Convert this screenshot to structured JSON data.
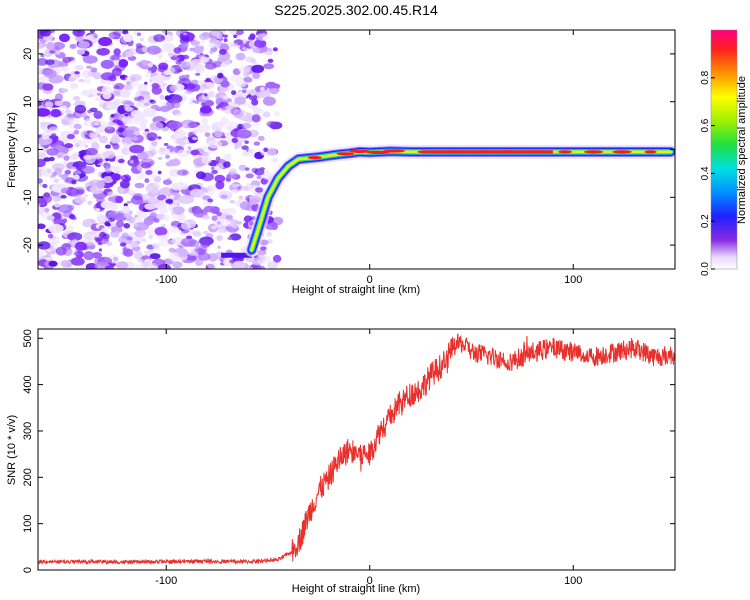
{
  "title": "S225.2025.302.00.45.R14",
  "chart_data": [
    {
      "type": "heatmap",
      "xlabel": "Height of straight line (km)",
      "ylabel": "Frequency (Hz)",
      "xlim": [
        -163,
        150
      ],
      "ylim": [
        -25,
        25
      ],
      "xticks": [
        -100,
        0,
        100
      ],
      "yticks": [
        -20,
        -10,
        0,
        10,
        20
      ],
      "xtick_labels": [
        "-100",
        "0",
        "100"
      ],
      "ytick_labels": [
        "-20",
        "-10",
        "0",
        "10",
        "20"
      ],
      "noise_region_x": [
        -163,
        -52
      ],
      "signal_track": {
        "x": [
          -58,
          -55,
          -50,
          -45,
          -40,
          -35,
          -30,
          -25,
          -20,
          -15,
          -10,
          -5,
          0,
          10,
          20,
          40,
          60,
          80,
          100,
          120,
          148
        ],
        "y": [
          -21,
          -17,
          -10,
          -6,
          -3.5,
          -2,
          -1.8,
          -1.6,
          -1.3,
          -1,
          -0.8,
          -0.5,
          -0.6,
          -0.4,
          -0.5,
          -0.5,
          -0.5,
          -0.5,
          -0.5,
          -0.5,
          -0.5
        ]
      },
      "colorbar": {
        "label": "Normalized spectral amplitude",
        "range": [
          0,
          1
        ],
        "ticks": [
          0.0,
          0.2,
          0.4,
          0.6,
          0.8
        ],
        "tick_labels": [
          "0.0",
          "0.2",
          "0.4",
          "0.6",
          "0.8"
        ]
      }
    },
    {
      "type": "line",
      "xlabel": "Height of straight line (km)",
      "ylabel": "SNR (10 * v/v)",
      "xlim": [
        -163,
        150
      ],
      "ylim": [
        0,
        520
      ],
      "xticks": [
        -100,
        0,
        100
      ],
      "yticks": [
        0,
        100,
        200,
        300,
        400,
        500
      ],
      "xtick_labels": [
        "-100",
        "0",
        "100"
      ],
      "ytick_labels": [
        "0",
        "100",
        "200",
        "300",
        "400",
        "500"
      ],
      "series": [
        {
          "name": "SNR",
          "color": "#e8302c",
          "x": [
            -163,
            -140,
            -120,
            -100,
            -80,
            -60,
            -45,
            -38,
            -34,
            -30,
            -25,
            -20,
            -15,
            -10,
            -5,
            0,
            5,
            10,
            15,
            20,
            25,
            30,
            35,
            38,
            40,
            45,
            50,
            60,
            70,
            80,
            90,
            100,
            110,
            120,
            130,
            140,
            150
          ],
          "values": [
            18,
            18,
            17,
            18,
            19,
            18,
            22,
            40,
            70,
            120,
            170,
            200,
            240,
            260,
            250,
            250,
            300,
            330,
            360,
            380,
            390,
            420,
            440,
            450,
            480,
            490,
            470,
            460,
            450,
            470,
            480,
            470,
            460,
            470,
            480,
            460,
            465
          ]
        }
      ]
    }
  ]
}
